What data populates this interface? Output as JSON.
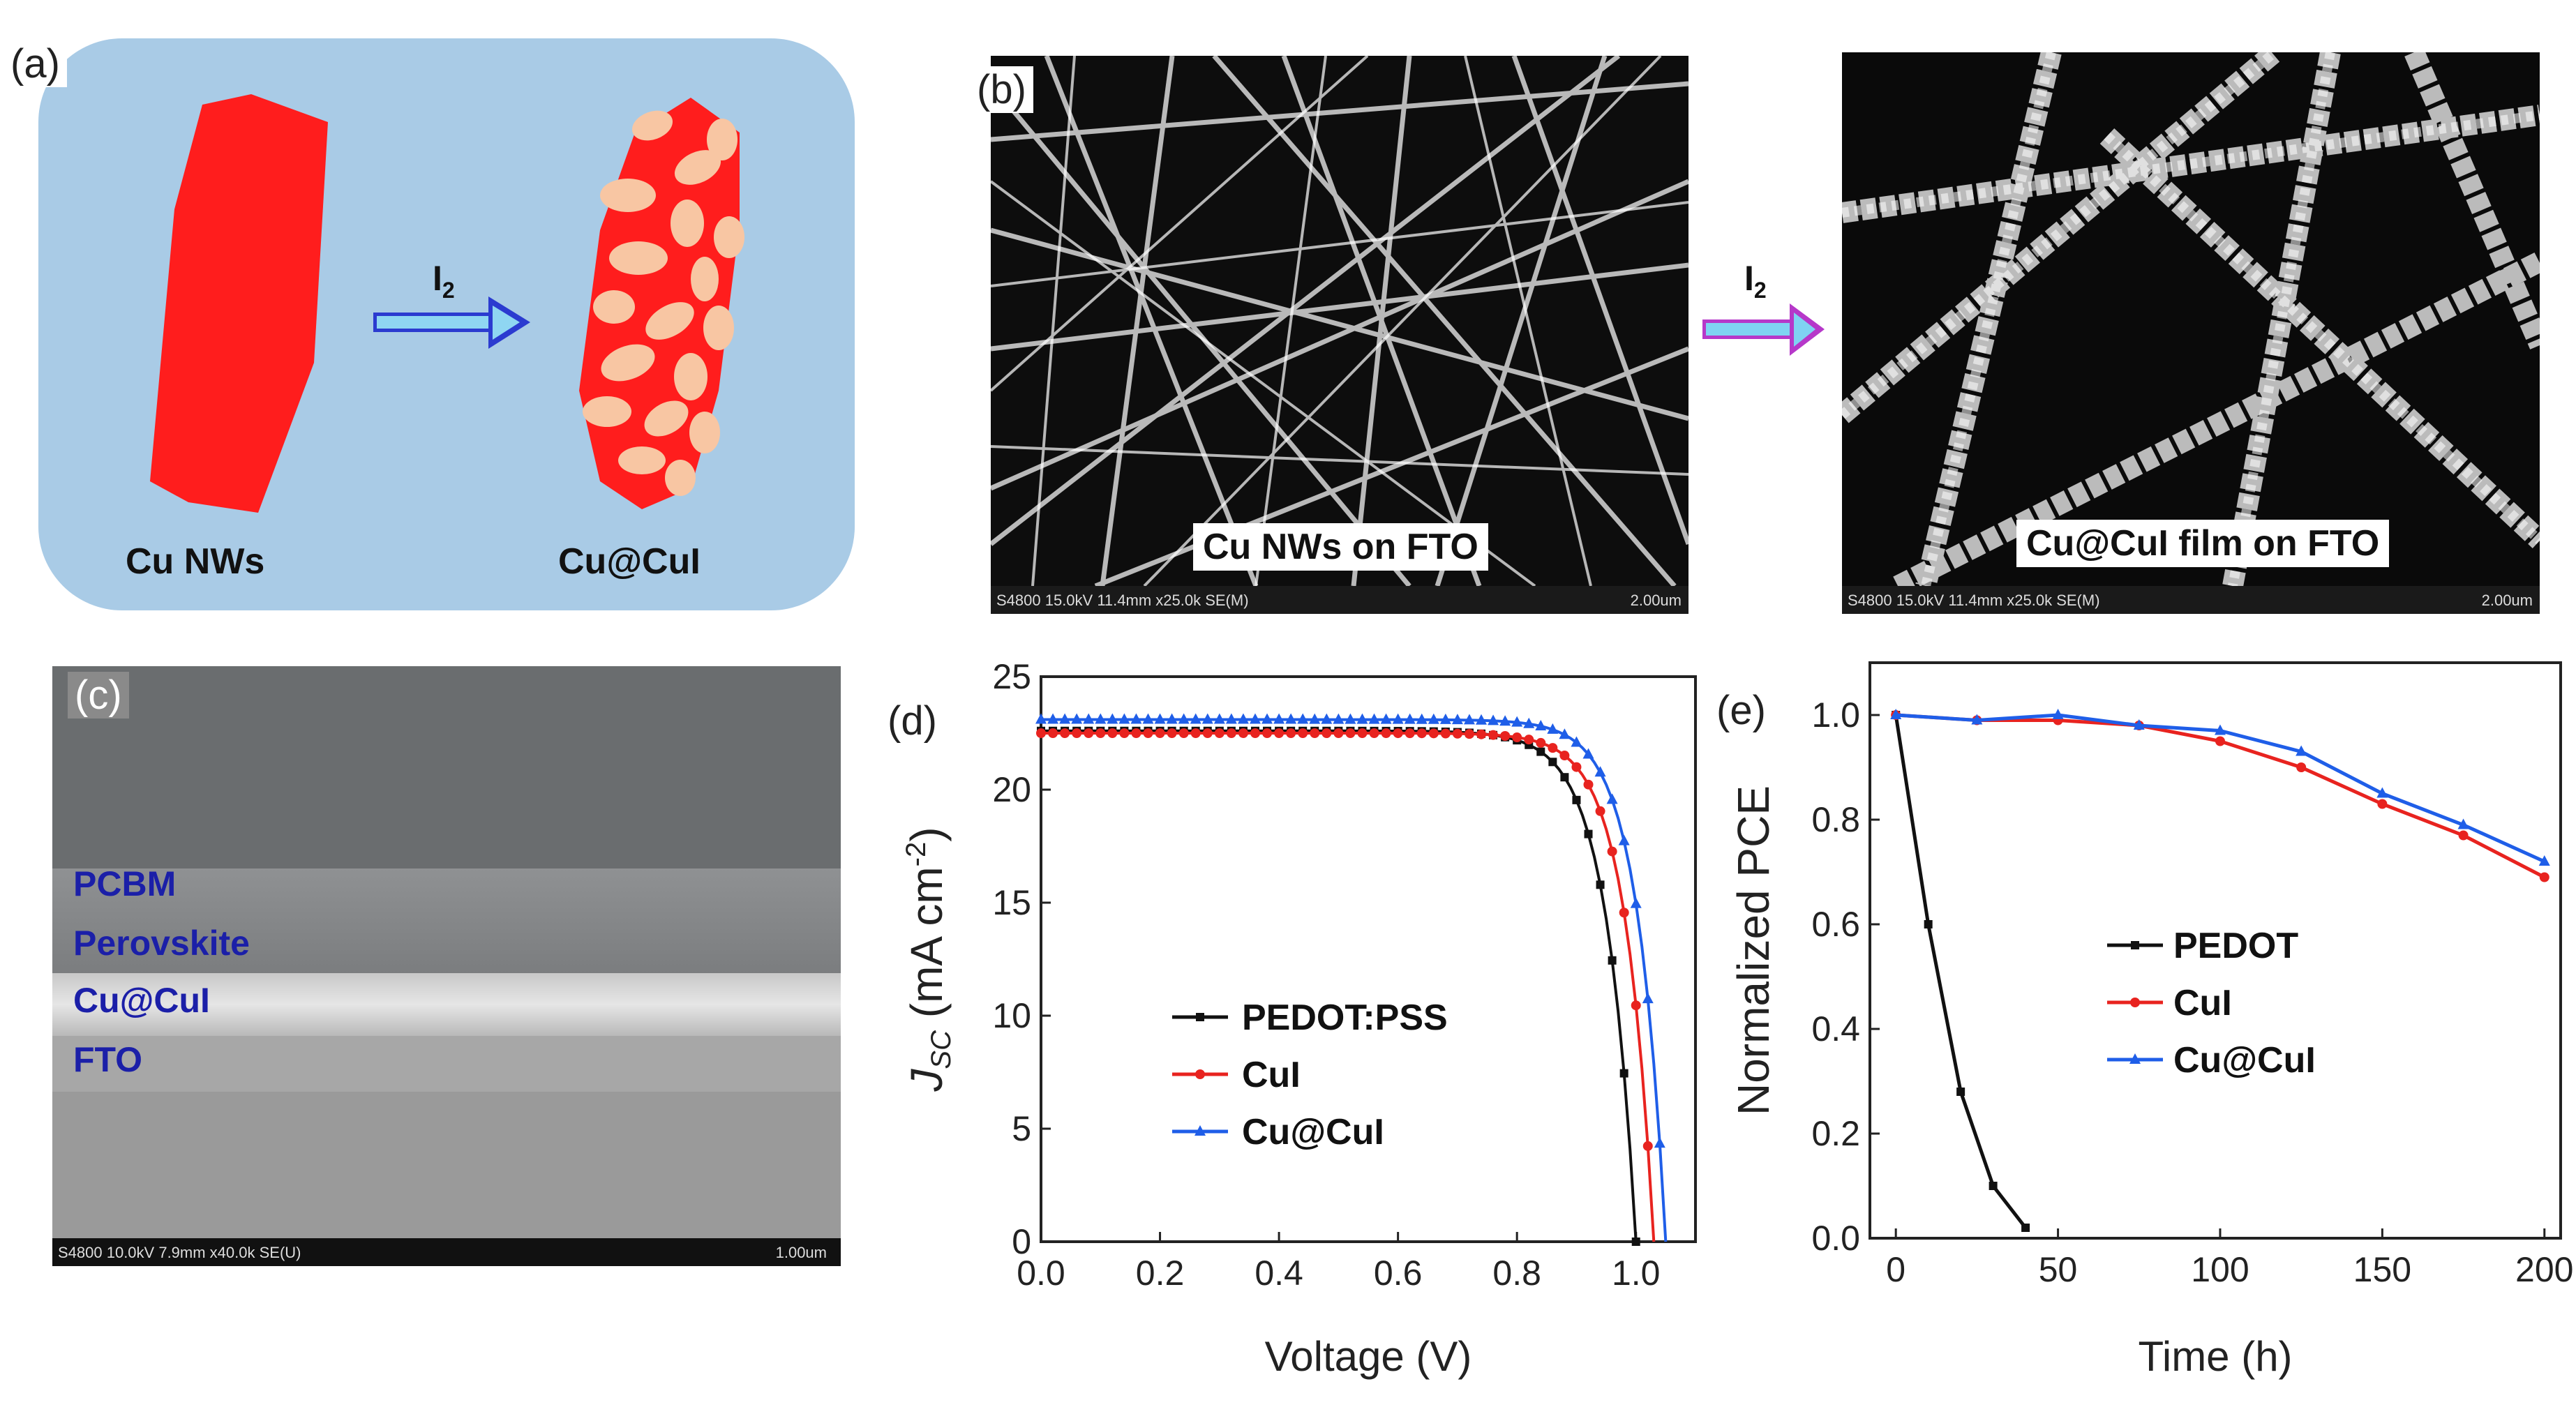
{
  "figure": {
    "panel_a": {
      "letter": "(a)",
      "left_caption": "Cu NWs",
      "right_caption": "Cu@CuI",
      "arrow_label": "I",
      "arrow_label_sub": "2"
    },
    "panel_b": {
      "letter": "(b)",
      "left_caption": "Cu NWs on FTO",
      "right_caption": "Cu@CuI film on FTO",
      "arrow_label": "I",
      "arrow_label_sub": "2",
      "left_footer_info": "S4800 15.0kV 11.4mm x25.0k SE(M)",
      "left_footer_scale": "2.00um",
      "right_footer_info": "S4800 15.0kV 11.4mm x25.0k SE(M)",
      "right_footer_scale": "2.00um"
    },
    "panel_c": {
      "letter": "(c)",
      "layers": [
        "PCBM",
        "Perovskite",
        "Cu@CuI",
        "FTO"
      ],
      "footer_info": "S4800 10.0kV 7.9mm x40.0k SE(U)",
      "footer_scale": "1.00um"
    },
    "panel_d": {
      "letter": "(d)"
    },
    "panel_e": {
      "letter": "(e)"
    }
  },
  "chart_data": [
    {
      "panel": "(d)",
      "type": "line",
      "xlabel": "Voltage (V)",
      "ylabel_main": "J",
      "ylabel_sub": "SC",
      "ylabel_rest": " (mA cm",
      "ylabel_sup": "-2",
      "ylabel_close": ")",
      "xlim": [
        0,
        1.1
      ],
      "ylim": [
        0,
        25
      ],
      "xticks": [
        "0.0",
        "0.2",
        "0.4",
        "0.6",
        "0.8",
        "1.0"
      ],
      "yticks": [
        "0",
        "5",
        "10",
        "15",
        "20",
        "25"
      ],
      "legend_position": "center",
      "series": [
        {
          "name": "PEDOT:PSS",
          "color": "#111111",
          "marker": "square",
          "jsc": 22.6,
          "voc": 1.0,
          "knee": 0.86,
          "n": 0.05
        },
        {
          "name": "CuI",
          "color": "#e8231f",
          "marker": "circle",
          "jsc": 22.5,
          "voc": 1.03,
          "knee": 0.88,
          "n": 0.048
        },
        {
          "name": "Cu@CuI",
          "color": "#1f5ee8",
          "marker": "triangle",
          "jsc": 23.1,
          "voc": 1.05,
          "knee": 0.9,
          "n": 0.048
        }
      ]
    },
    {
      "panel": "(e)",
      "type": "line",
      "xlabel": "Time (h)",
      "ylabel": "Normalized PCE",
      "xlim": [
        -8,
        205
      ],
      "ylim": [
        0,
        1.1
      ],
      "xticks": [
        "0",
        "50",
        "100",
        "150",
        "200"
      ],
      "yticks": [
        "0.0",
        "0.2",
        "0.4",
        "0.6",
        "0.8",
        "1.0"
      ],
      "legend_position": "center",
      "series": [
        {
          "name": "PEDOT",
          "color": "#111111",
          "marker": "square",
          "x": [
            0,
            10,
            20,
            30,
            40
          ],
          "y": [
            1.0,
            0.6,
            0.28,
            0.1,
            0.02
          ]
        },
        {
          "name": "CuI",
          "color": "#e8231f",
          "marker": "circle",
          "x": [
            0,
            25,
            50,
            75,
            100,
            125,
            150,
            175,
            200
          ],
          "y": [
            1.0,
            0.99,
            0.99,
            0.98,
            0.95,
            0.9,
            0.83,
            0.77,
            0.69
          ]
        },
        {
          "name": "Cu@CuI",
          "color": "#1f5ee8",
          "marker": "triangle",
          "x": [
            0,
            25,
            50,
            75,
            100,
            125,
            150,
            175,
            200
          ],
          "y": [
            1.0,
            0.99,
            1.0,
            0.98,
            0.97,
            0.93,
            0.85,
            0.79,
            0.72
          ]
        }
      ]
    }
  ]
}
